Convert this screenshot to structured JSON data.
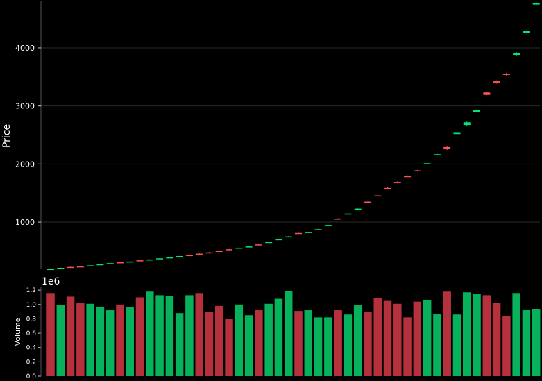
{
  "colors": {
    "background": "#000000",
    "up": "#00e676",
    "down": "#ff5252",
    "volume_up": "#08b15b",
    "volume_down": "#b5313c",
    "grid": "#2a2a2a",
    "text": "#ffffff"
  },
  "chart_data": [
    {
      "type": "candlestick",
      "ylabel": "Price",
      "ylim": [
        200,
        4800
      ],
      "yticks": [
        1000,
        2000,
        3000,
        4000
      ],
      "yticklabels": [
        "1000",
        "2000",
        "3000",
        "4000"
      ],
      "grid": true,
      "candles": [
        {
          "open": 190,
          "high": 195,
          "low": 185,
          "close": 193,
          "direction": "up"
        },
        {
          "open": 210,
          "high": 216,
          "low": 205,
          "close": 212,
          "direction": "up"
        },
        {
          "open": 228,
          "high": 232,
          "low": 222,
          "close": 224,
          "direction": "down"
        },
        {
          "open": 238,
          "high": 243,
          "low": 233,
          "close": 236,
          "direction": "down"
        },
        {
          "open": 252,
          "high": 258,
          "low": 248,
          "close": 255,
          "direction": "up"
        },
        {
          "open": 270,
          "high": 278,
          "low": 265,
          "close": 275,
          "direction": "up"
        },
        {
          "open": 290,
          "high": 297,
          "low": 285,
          "close": 293,
          "direction": "up"
        },
        {
          "open": 308,
          "high": 313,
          "low": 300,
          "close": 303,
          "direction": "down"
        },
        {
          "open": 318,
          "high": 324,
          "low": 314,
          "close": 321,
          "direction": "up"
        },
        {
          "open": 342,
          "high": 347,
          "low": 334,
          "close": 337,
          "direction": "down"
        },
        {
          "open": 352,
          "high": 359,
          "low": 347,
          "close": 356,
          "direction": "up"
        },
        {
          "open": 370,
          "high": 379,
          "low": 364,
          "close": 376,
          "direction": "up"
        },
        {
          "open": 390,
          "high": 396,
          "low": 385,
          "close": 393,
          "direction": "up"
        },
        {
          "open": 410,
          "high": 418,
          "low": 404,
          "close": 415,
          "direction": "up"
        },
        {
          "open": 432,
          "high": 438,
          "low": 426,
          "close": 429,
          "direction": "down"
        },
        {
          "open": 456,
          "high": 462,
          "low": 450,
          "close": 454,
          "direction": "down"
        },
        {
          "open": 478,
          "high": 484,
          "low": 472,
          "close": 474,
          "direction": "down"
        },
        {
          "open": 504,
          "high": 510,
          "low": 498,
          "close": 500,
          "direction": "down"
        },
        {
          "open": 532,
          "high": 536,
          "low": 526,
          "close": 528,
          "direction": "down"
        },
        {
          "open": 555,
          "high": 562,
          "low": 550,
          "close": 559,
          "direction": "up"
        },
        {
          "open": 578,
          "high": 584,
          "low": 572,
          "close": 581,
          "direction": "up"
        },
        {
          "open": 616,
          "high": 622,
          "low": 610,
          "close": 612,
          "direction": "down"
        },
        {
          "open": 650,
          "high": 662,
          "low": 645,
          "close": 658,
          "direction": "up"
        },
        {
          "open": 698,
          "high": 710,
          "low": 692,
          "close": 706,
          "direction": "up"
        },
        {
          "open": 745,
          "high": 758,
          "low": 740,
          "close": 754,
          "direction": "up"
        },
        {
          "open": 812,
          "high": 818,
          "low": 800,
          "close": 806,
          "direction": "down"
        },
        {
          "open": 820,
          "high": 832,
          "low": 815,
          "close": 829,
          "direction": "up"
        },
        {
          "open": 868,
          "high": 882,
          "low": 862,
          "close": 877,
          "direction": "up"
        },
        {
          "open": 942,
          "high": 954,
          "low": 936,
          "close": 951,
          "direction": "up"
        },
        {
          "open": 1060,
          "high": 1068,
          "low": 1052,
          "close": 1057,
          "direction": "down"
        },
        {
          "open": 1142,
          "high": 1152,
          "low": 1132,
          "close": 1147,
          "direction": "up"
        },
        {
          "open": 1218,
          "high": 1238,
          "low": 1212,
          "close": 1232,
          "direction": "up"
        },
        {
          "open": 1352,
          "high": 1362,
          "low": 1338,
          "close": 1343,
          "direction": "down"
        },
        {
          "open": 1460,
          "high": 1472,
          "low": 1448,
          "close": 1454,
          "direction": "down"
        },
        {
          "open": 1588,
          "high": 1600,
          "low": 1578,
          "close": 1583,
          "direction": "down"
        },
        {
          "open": 1692,
          "high": 1702,
          "low": 1668,
          "close": 1672,
          "direction": "down"
        },
        {
          "open": 1792,
          "high": 1805,
          "low": 1778,
          "close": 1786,
          "direction": "down"
        },
        {
          "open": 1890,
          "high": 1900,
          "low": 1872,
          "close": 1880,
          "direction": "down"
        },
        {
          "open": 1995,
          "high": 2020,
          "low": 1985,
          "close": 2012,
          "direction": "up"
        },
        {
          "open": 2160,
          "high": 2178,
          "low": 2146,
          "close": 2168,
          "direction": "up"
        },
        {
          "open": 2292,
          "high": 2305,
          "low": 2240,
          "close": 2258,
          "direction": "down"
        },
        {
          "open": 2515,
          "high": 2560,
          "low": 2505,
          "close": 2548,
          "direction": "up"
        },
        {
          "open": 2672,
          "high": 2730,
          "low": 2660,
          "close": 2718,
          "direction": "up"
        },
        {
          "open": 2900,
          "high": 2940,
          "low": 2890,
          "close": 2932,
          "direction": "up"
        },
        {
          "open": 3232,
          "high": 3240,
          "low": 3185,
          "close": 3190,
          "direction": "down"
        },
        {
          "open": 3425,
          "high": 3440,
          "low": 3385,
          "close": 3395,
          "direction": "down"
        },
        {
          "open": 3552,
          "high": 3572,
          "low": 3518,
          "close": 3545,
          "direction": "down"
        },
        {
          "open": 3880,
          "high": 3925,
          "low": 3870,
          "close": 3915,
          "direction": "up"
        },
        {
          "open": 4260,
          "high": 4300,
          "low": 4248,
          "close": 4290,
          "direction": "up"
        },
        {
          "open": 4745,
          "high": 4785,
          "low": 4735,
          "close": 4775,
          "direction": "up"
        }
      ]
    },
    {
      "type": "bar",
      "ylabel": "Volume",
      "offset_text": "1e6",
      "ylim": [
        0,
        1.25
      ],
      "yticks": [
        0.0,
        0.2,
        0.4,
        0.6,
        0.8,
        1.0,
        1.2
      ],
      "yticklabels": [
        "0.0",
        "0.2",
        "0.4",
        "0.6",
        "0.8",
        "1.0",
        "1.2"
      ],
      "values": [
        1.16,
        0.99,
        1.11,
        1.02,
        1.01,
        0.97,
        0.92,
        1.0,
        0.96,
        1.1,
        1.18,
        1.13,
        1.12,
        0.88,
        1.13,
        1.16,
        0.9,
        0.98,
        0.8,
        1.0,
        0.85,
        0.93,
        1.01,
        1.08,
        1.19,
        0.91,
        0.92,
        0.82,
        0.82,
        0.92,
        0.86,
        0.99,
        0.9,
        1.09,
        1.05,
        1.01,
        0.82,
        1.04,
        1.06,
        0.87,
        1.18,
        0.86,
        1.17,
        1.15,
        1.13,
        1.02,
        0.84,
        1.16,
        0.93,
        0.94
      ],
      "directions": [
        "down",
        "up",
        "down",
        "down",
        "up",
        "up",
        "up",
        "down",
        "up",
        "down",
        "up",
        "up",
        "up",
        "up",
        "up",
        "down",
        "down",
        "down",
        "down",
        "up",
        "up",
        "down",
        "up",
        "up",
        "up",
        "down",
        "up",
        "up",
        "up",
        "down",
        "up",
        "up",
        "down",
        "down",
        "down",
        "down",
        "down",
        "down",
        "up",
        "up",
        "down",
        "up",
        "up",
        "up",
        "down",
        "down",
        "down",
        "up",
        "up",
        "up"
      ]
    }
  ]
}
